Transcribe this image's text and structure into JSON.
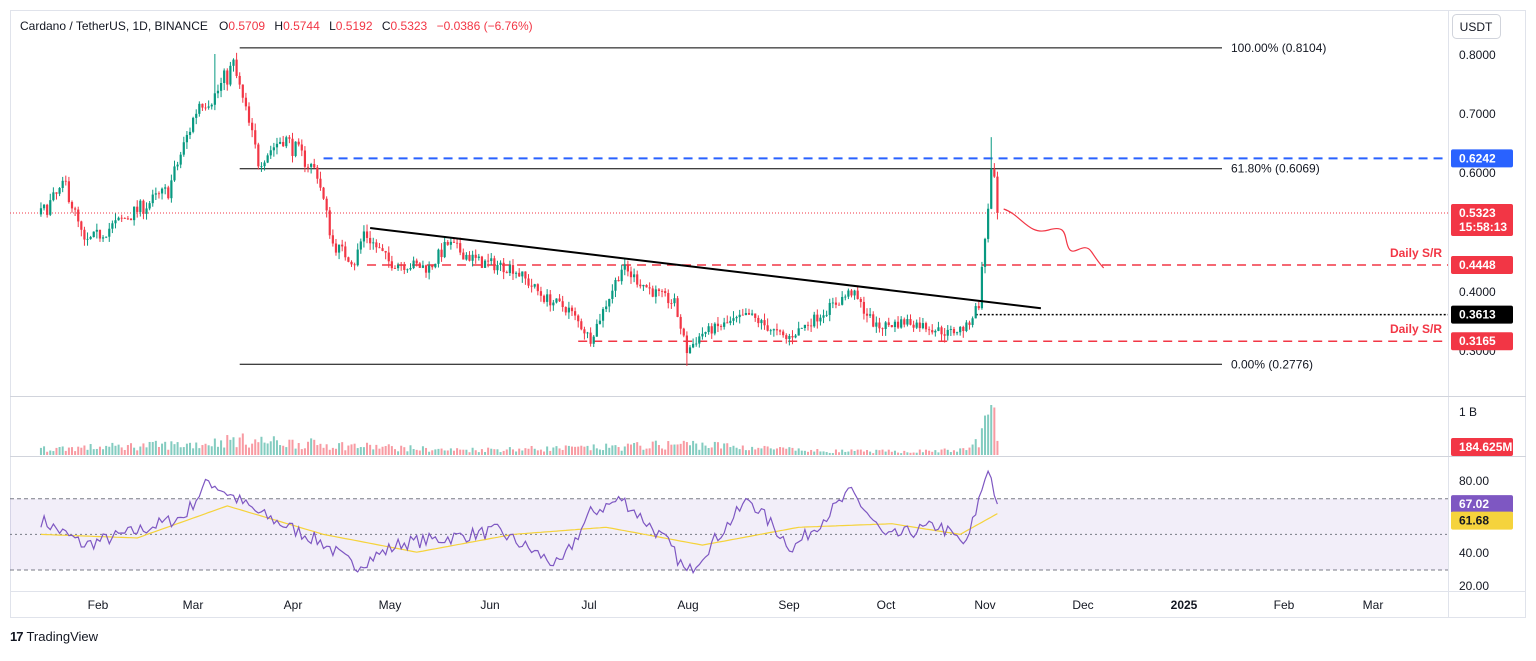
{
  "header": {
    "symbol": "Cardano / TetherUS, 1D, BINANCE",
    "open_label": "O",
    "open": "0.5709",
    "high_label": "H",
    "high": "0.5744",
    "low_label": "L",
    "low": "0.5192",
    "close_label": "C",
    "close": "0.5323",
    "change": "−0.0386 (−6.76%)",
    "currency": "USDT"
  },
  "colors": {
    "up": "#089981",
    "down": "#f23645",
    "blue": "#2962ff",
    "rsi": "#7e57c2",
    "rsi_ma": "#f5d33c"
  },
  "chart_data": {
    "type": "line",
    "title": "Cardano / TetherUS, 1D, BINANCE",
    "y_ticks": [
      "0.8000",
      "0.7000",
      "0.6000",
      "0.4000",
      "0.3000"
    ],
    "ylim": [
      0.27,
      0.83
    ],
    "x_ticks": [
      "Feb",
      "Mar",
      "Apr",
      "May",
      "Jun",
      "Jul",
      "Aug",
      "Sep",
      "Oct",
      "Nov",
      "Dec",
      "2025",
      "Feb",
      "Mar"
    ],
    "price_anchors": {
      "dates": [
        "2024-01-10",
        "2024-01-18",
        "2024-01-24",
        "2024-02-05",
        "2024-02-20",
        "2024-03-01",
        "2024-03-06",
        "2024-03-12",
        "2024-03-20",
        "2024-03-28",
        "2024-04-08",
        "2024-04-13",
        "2024-04-20",
        "2024-04-23",
        "2024-05-01",
        "2024-05-14",
        "2024-05-20",
        "2024-05-30",
        "2024-06-10",
        "2024-06-20",
        "2024-06-28",
        "2024-07-05",
        "2024-07-15",
        "2024-07-25",
        "2024-08-01",
        "2024-08-05",
        "2024-08-10",
        "2024-08-25",
        "2024-09-06",
        "2024-09-14",
        "2024-09-27",
        "2024-10-05",
        "2024-10-15",
        "2024-10-22",
        "2024-10-28",
        "2024-11-03",
        "2024-11-07",
        "2024-11-09",
        "2024-11-11",
        "2024-11-12",
        "2024-11-13"
      ],
      "values": [
        0.53,
        0.58,
        0.48,
        0.52,
        0.57,
        0.72,
        0.73,
        0.78,
        0.62,
        0.66,
        0.6,
        0.48,
        0.45,
        0.5,
        0.45,
        0.44,
        0.48,
        0.45,
        0.44,
        0.39,
        0.37,
        0.32,
        0.44,
        0.4,
        0.38,
        0.3,
        0.33,
        0.36,
        0.32,
        0.35,
        0.4,
        0.34,
        0.35,
        0.34,
        0.33,
        0.34,
        0.38,
        0.49,
        0.6,
        0.58,
        0.5323
      ]
    },
    "volume_anchors": {
      "dates": [
        "2024-01-10",
        "2024-03-01",
        "2024-03-12",
        "2024-04-13",
        "2024-05-20",
        "2024-07-05",
        "2024-08-05",
        "2024-09-15",
        "2024-10-15",
        "2024-11-03",
        "2024-11-07",
        "2024-11-09",
        "2024-11-11",
        "2024-11-13"
      ],
      "values": [
        0.12,
        0.22,
        0.3,
        0.2,
        0.1,
        0.14,
        0.22,
        0.08,
        0.07,
        0.1,
        0.3,
        0.6,
        0.95,
        0.35
      ]
    },
    "volume_ticks": [
      "1 B"
    ],
    "rsi_ticks": [
      "80.00",
      "40.00",
      "20.00"
    ],
    "rsi_anchors": {
      "dates": [
        "2024-01-10",
        "2024-01-24",
        "2024-02-10",
        "2024-02-25",
        "2024-03-04",
        "2024-03-20",
        "2024-04-10",
        "2024-04-20",
        "2024-05-05",
        "2024-05-20",
        "2024-06-05",
        "2024-06-25",
        "2024-07-05",
        "2024-07-15",
        "2024-07-30",
        "2024-08-05",
        "2024-08-25",
        "2024-09-08",
        "2024-09-27",
        "2024-10-08",
        "2024-10-25",
        "2024-11-03",
        "2024-11-10",
        "2024-11-13"
      ],
      "values": [
        58,
        44,
        52,
        60,
        80,
        62,
        45,
        32,
        45,
        48,
        52,
        32,
        62,
        70,
        45,
        28,
        70,
        42,
        74,
        48,
        55,
        44,
        88,
        67.02
      ]
    },
    "rsi_ma_anchors": {
      "dates": [
        "2024-01-10",
        "2024-02-10",
        "2024-03-10",
        "2024-04-10",
        "2024-05-10",
        "2024-06-10",
        "2024-07-10",
        "2024-08-10",
        "2024-09-10",
        "2024-10-10",
        "2024-11-01",
        "2024-11-13"
      ],
      "values": [
        50,
        48,
        66,
        50,
        40,
        50,
        54,
        44,
        54,
        56,
        50,
        61.68
      ]
    },
    "levels": {
      "fib_100": 0.8104,
      "fib_618": 0.6069,
      "fib_0": 0.2776,
      "resistance_blue": 0.6242,
      "last_price": 0.5323,
      "daily_sr_upper": 0.4448,
      "dotted_level": 0.3613,
      "daily_sr_lower": 0.3165
    },
    "labels": {
      "fib_100": "100.00% (0.8104)",
      "fib_618": "61.80% (0.6069)",
      "fib_0": "0.00% (0.2776)",
      "daily_sr_1": "Daily S/R",
      "daily_sr_2": "Daily S/R",
      "tag_blue": "0.6242",
      "tag_last": "0.5323",
      "tag_timer": "15:58:13",
      "tag_sr_upper": "0.4448",
      "tag_dotted": "0.3613",
      "tag_sr_lower": "0.3165",
      "tag_volume": "184.625M",
      "tag_rsi": "67.02",
      "tag_rsi_ma": "61.68"
    },
    "grid": false,
    "legend": "none"
  },
  "footer": {
    "brand": "TradingView"
  }
}
